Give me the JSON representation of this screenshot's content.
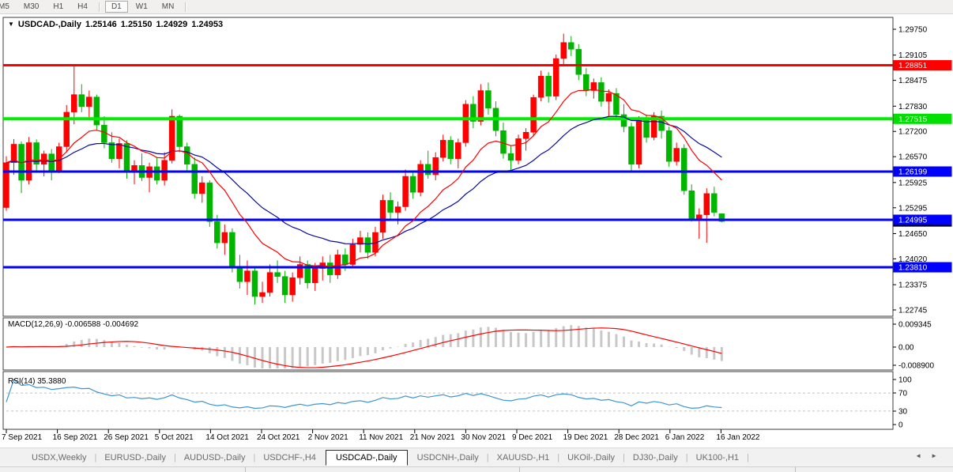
{
  "toolbar": {
    "timeframes": [
      "M5",
      "M30",
      "H1",
      "H4",
      "D1",
      "W1",
      "MN"
    ],
    "active_timeframe": "D1"
  },
  "title": {
    "dropdown_icon": "▼",
    "symbol": "USDCAD-,Daily",
    "open": "1.25146",
    "high": "1.25150",
    "low": "1.24929",
    "close": "1.24953"
  },
  "price_scale": {
    "current_price": "1.24953"
  },
  "hlines": [
    {
      "label": "1.28851",
      "price": 1.28851,
      "color": "#FF0000"
    },
    {
      "label": "1.27515",
      "price": 1.27515,
      "color": "#00E000"
    },
    {
      "label": "1.26199",
      "price": 1.26199,
      "color": "#0000FF"
    },
    {
      "label": "1.24995",
      "price": 1.24995,
      "color": "#0000FF"
    },
    {
      "label": "1.23810",
      "price": 1.2381,
      "color": "#0000FF"
    }
  ],
  "macd": {
    "label": "MACD(12,26,9)",
    "values": "-0.006588 -0.004692",
    "axis_labels": [
      "0.009345",
      "0.00",
      "-0.008900"
    ],
    "params": {
      "fast": 12,
      "slow": 26,
      "signal": 9
    }
  },
  "rsi": {
    "label": "RSI(14)",
    "value": "35.3880",
    "axis_labels": [
      "100",
      "70",
      "30",
      "0"
    ],
    "levels": [
      70,
      30
    ],
    "period": 14
  },
  "dates": [
    "7 Sep 2021",
    "16 Sep 2021",
    "26 Sep 2021",
    "5 Oct 2021",
    "14 Oct 2021",
    "24 Oct 2021",
    "2 Nov 2021",
    "11 Nov 2021",
    "21 Nov 2021",
    "30 Nov 2021",
    "9 Dec 2021",
    "19 Dec 2021",
    "28 Dec 2021",
    "6 Jan 2022",
    "16 Jan 2022"
  ],
  "tabs": {
    "items": [
      "USDX,Weekly",
      "EURUSD-,Daily",
      "AUDUSD-,Daily",
      "USDCHF-,H4",
      "USDCAD-,Daily",
      "USDCNH-,Daily",
      "XAUUSD-,H1",
      "UKOil-,Daily",
      "DJ30-,Daily",
      "UK100-,H1"
    ],
    "active": "USDCAD-,Daily",
    "scroll_left_icon": "◄",
    "scroll_right_icon": "►"
  },
  "colors": {
    "candle_up": "#FF0000",
    "candle_down": "#00B400",
    "ma_fast": "#FF0000",
    "ma_slow": "#0A0AA0",
    "macd_histogram": "#C8C8C8",
    "macd_signal": "#FF0000",
    "rsi_line": "#3C96D2",
    "level_dashed": "#C0C0C0",
    "panel_border": "#3C3C3C"
  },
  "chart_data": {
    "type": "candlestick",
    "symbol": "USDCAD",
    "timeframe": "Daily",
    "title": "USDCAD-,Daily 1.25146 1.25150 1.24929 1.24953",
    "price_axis": {
      "labels": [
        "1.29750",
        "1.29105",
        "1.28475",
        "1.27830",
        "1.27200",
        "1.26570",
        "1.25925",
        "1.25295",
        "1.24650",
        "1.24020",
        "1.23375",
        "1.22745"
      ],
      "min": 1.2259,
      "max": 1.3005,
      "grid": false,
      "position": "right"
    },
    "horizontal_levels": [
      1.28851,
      1.27515,
      1.26199,
      1.24995,
      1.2381
    ],
    "overlays": [
      {
        "name": "ma-fast",
        "type": "ema",
        "period": 12,
        "color": "#FF0000"
      },
      {
        "name": "ma-slow",
        "type": "ema",
        "period": 26,
        "color": "#0A0AA0"
      }
    ],
    "sub_panels": [
      {
        "name": "MACD",
        "params": "12,26,9",
        "current": [
          -0.006588,
          -0.004692
        ],
        "axis": [
          0.009345,
          0.0,
          -0.0089
        ]
      },
      {
        "name": "RSI",
        "params": "14",
        "current": 35.388,
        "axis": [
          100,
          70,
          30,
          0
        ],
        "levels": [
          70,
          30
        ]
      }
    ],
    "candles": [
      [
        1.253,
        1.2658,
        1.2522,
        1.2642
      ],
      [
        1.2642,
        1.2701,
        1.2612,
        1.2688
      ],
      [
        1.2688,
        1.2695,
        1.2566,
        1.2598
      ],
      [
        1.2598,
        1.2706,
        1.2588,
        1.2692
      ],
      [
        1.2692,
        1.27,
        1.2622,
        1.2638
      ],
      [
        1.2638,
        1.2672,
        1.2608,
        1.2664
      ],
      [
        1.2664,
        1.2676,
        1.2598,
        1.2622
      ],
      [
        1.2622,
        1.2692,
        1.2616,
        1.2682
      ],
      [
        1.2682,
        1.2786,
        1.2668,
        1.2768
      ],
      [
        1.2768,
        1.2888,
        1.2738,
        1.2812
      ],
      [
        1.2812,
        1.2838,
        1.2768,
        1.2782
      ],
      [
        1.2782,
        1.2822,
        1.2752,
        1.2806
      ],
      [
        1.2806,
        1.2812,
        1.2722,
        1.2736
      ],
      [
        1.2736,
        1.2758,
        1.2678,
        1.2692
      ],
      [
        1.2692,
        1.2718,
        1.2642,
        1.2652
      ],
      [
        1.2652,
        1.2702,
        1.2628,
        1.269
      ],
      [
        1.269,
        1.2698,
        1.2602,
        1.2618
      ],
      [
        1.2618,
        1.2648,
        1.2588,
        1.2635
      ],
      [
        1.2635,
        1.2665,
        1.2596,
        1.2605
      ],
      [
        1.2605,
        1.2642,
        1.2568,
        1.2632
      ],
      [
        1.2632,
        1.2656,
        1.2588,
        1.2598
      ],
      [
        1.2598,
        1.2668,
        1.2585,
        1.2648
      ],
      [
        1.2648,
        1.2775,
        1.264,
        1.2758
      ],
      [
        1.2758,
        1.2762,
        1.2668,
        1.2682
      ],
      [
        1.2682,
        1.2692,
        1.2622,
        1.2638
      ],
      [
        1.2638,
        1.2655,
        1.2552,
        1.2565
      ],
      [
        1.2565,
        1.2608,
        1.2542,
        1.2592
      ],
      [
        1.2592,
        1.2598,
        1.2482,
        1.2495
      ],
      [
        1.2495,
        1.2512,
        1.2428,
        1.2442
      ],
      [
        1.2442,
        1.2488,
        1.2412,
        1.2468
      ],
      [
        1.2468,
        1.2478,
        1.2368,
        1.2382
      ],
      [
        1.2382,
        1.2412,
        1.2328,
        1.2345
      ],
      [
        1.2345,
        1.2398,
        1.2312,
        1.2372
      ],
      [
        1.2372,
        1.2382,
        1.2288,
        1.2308
      ],
      [
        1.2308,
        1.2345,
        1.2292,
        1.2318
      ],
      [
        1.2318,
        1.2388,
        1.2308,
        1.2368
      ],
      [
        1.2368,
        1.2398,
        1.2342,
        1.2358
      ],
      [
        1.2358,
        1.2372,
        1.2292,
        1.2312
      ],
      [
        1.2312,
        1.2368,
        1.2295,
        1.2355
      ],
      [
        1.2355,
        1.2408,
        1.2338,
        1.2388
      ],
      [
        1.2388,
        1.2398,
        1.2328,
        1.2342
      ],
      [
        1.2342,
        1.2392,
        1.2322,
        1.2378
      ],
      [
        1.2378,
        1.2408,
        1.2348,
        1.2392
      ],
      [
        1.2392,
        1.2412,
        1.2342,
        1.2362
      ],
      [
        1.2362,
        1.2425,
        1.2352,
        1.2412
      ],
      [
        1.2412,
        1.2428,
        1.2372,
        1.2388
      ],
      [
        1.2388,
        1.2452,
        1.2378,
        1.2438
      ],
      [
        1.2438,
        1.2472,
        1.2418,
        1.2455
      ],
      [
        1.2455,
        1.2468,
        1.2402,
        1.2418
      ],
      [
        1.2418,
        1.2482,
        1.2408,
        1.2468
      ],
      [
        1.2468,
        1.2562,
        1.2452,
        1.2548
      ],
      [
        1.2548,
        1.2568,
        1.2502,
        1.2518
      ],
      [
        1.2518,
        1.2545,
        1.2488,
        1.2532
      ],
      [
        1.2532,
        1.2625,
        1.2522,
        1.2608
      ],
      [
        1.2608,
        1.2618,
        1.2552,
        1.2568
      ],
      [
        1.2568,
        1.2648,
        1.2558,
        1.2638
      ],
      [
        1.2638,
        1.2672,
        1.2602,
        1.2612
      ],
      [
        1.2612,
        1.2668,
        1.2598,
        1.2655
      ],
      [
        1.2655,
        1.2712,
        1.2645,
        1.2698
      ],
      [
        1.2698,
        1.2708,
        1.2638,
        1.2652
      ],
      [
        1.2652,
        1.2702,
        1.2628,
        1.2692
      ],
      [
        1.2692,
        1.2798,
        1.2682,
        1.2788
      ],
      [
        1.2788,
        1.2808,
        1.2728,
        1.2745
      ],
      [
        1.2745,
        1.2838,
        1.2735,
        1.2822
      ],
      [
        1.2822,
        1.2842,
        1.2762,
        1.2778
      ],
      [
        1.2778,
        1.2795,
        1.2708,
        1.2722
      ],
      [
        1.2722,
        1.2742,
        1.2652,
        1.2665
      ],
      [
        1.2665,
        1.2685,
        1.2618,
        1.2648
      ],
      [
        1.2648,
        1.2712,
        1.2638,
        1.2702
      ],
      [
        1.2702,
        1.2728,
        1.2672,
        1.2718
      ],
      [
        1.2718,
        1.2812,
        1.2708,
        1.2805
      ],
      [
        1.2805,
        1.2872,
        1.2795,
        1.2858
      ],
      [
        1.2858,
        1.2868,
        1.2792,
        1.2808
      ],
      [
        1.2808,
        1.2912,
        1.2798,
        1.2902
      ],
      [
        1.2902,
        1.2964,
        1.2888,
        1.2942
      ],
      [
        1.2942,
        1.2958,
        1.2908,
        1.2925
      ],
      [
        1.2925,
        1.2938,
        1.2848,
        1.2862
      ],
      [
        1.2862,
        1.2878,
        1.2808,
        1.2822
      ],
      [
        1.2822,
        1.2852,
        1.2802,
        1.2842
      ],
      [
        1.2842,
        1.2855,
        1.2782,
        1.2795
      ],
      [
        1.2795,
        1.2825,
        1.2758,
        1.2815
      ],
      [
        1.2815,
        1.2828,
        1.2748,
        1.2762
      ],
      [
        1.2762,
        1.2788,
        1.2718,
        1.2732
      ],
      [
        1.2732,
        1.2742,
        1.2622,
        1.2638
      ],
      [
        1.2638,
        1.2758,
        1.2628,
        1.2748
      ],
      [
        1.2748,
        1.2762,
        1.2692,
        1.2705
      ],
      [
        1.2705,
        1.2768,
        1.2698,
        1.2758
      ],
      [
        1.2758,
        1.2772,
        1.2702,
        1.2722
      ],
      [
        1.2722,
        1.2732,
        1.2632,
        1.2645
      ],
      [
        1.2645,
        1.2692,
        1.2635,
        1.2678
      ],
      [
        1.2678,
        1.2688,
        1.2562,
        1.2572
      ],
      [
        1.2572,
        1.2588,
        1.2495,
        1.2502
      ],
      [
        1.2502,
        1.2528,
        1.2452,
        1.2512
      ],
      [
        1.2512,
        1.2578,
        1.2442,
        1.2565
      ],
      [
        1.2565,
        1.2582,
        1.2508,
        1.2518
      ],
      [
        1.25146,
        1.2515,
        1.24929,
        1.24953
      ]
    ]
  }
}
